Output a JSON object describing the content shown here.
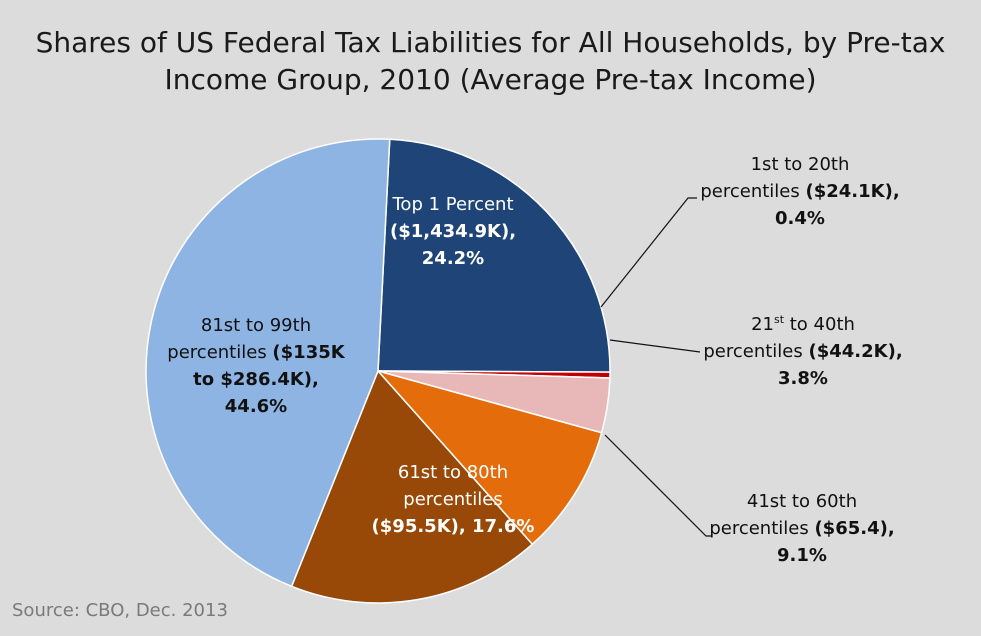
{
  "title_line1": "Shares of US Federal Tax Liabilities for All Households, by Pre-tax",
  "title_line2": "Income Group, 2010 (Average Pre-tax Income)",
  "source": "Source: CBO, Dec. 2013",
  "chart_data": {
    "type": "pie",
    "title": "Shares of US Federal Tax Liabilities for All Households, by Pre-tax Income Group, 2010 (Average Pre-tax Income)",
    "unit": "%",
    "slices": [
      {
        "key": "top-1-percent",
        "value": 24.2,
        "color": "#1f4578",
        "label_lines": [
          {
            "text": "Top 1 Percent",
            "bold": ""
          },
          {
            "text": "",
            "bold": "($1,434.9K),"
          },
          {
            "text": "",
            "bold": "24.2%"
          }
        ]
      },
      {
        "key": "1st-to-20th",
        "value": 0.4,
        "color": "#c00000",
        "label_lines": [
          {
            "text": "1st to 20th",
            "bold": ""
          },
          {
            "text": "percentiles ",
            "bold": "($24.1K)",
            "tail": ","
          },
          {
            "text": "",
            "bold": "0.4%"
          }
        ]
      },
      {
        "key": "21st-to-40th",
        "value": 3.8,
        "color": "#e8b8b8",
        "label_lines": [
          {
            "text": "21",
            "sup": "st",
            "tail": " to 40th"
          },
          {
            "text": "percentiles ",
            "bold": "($44.2K)",
            "tail": ","
          },
          {
            "text": "",
            "bold": "3.8%"
          }
        ]
      },
      {
        "key": "41st-to-60th",
        "value": 9.1,
        "color": "#e46c0a",
        "label_lines": [
          {
            "text": "41st to 60th",
            "bold": ""
          },
          {
            "text": "percentiles ",
            "bold": "($65.4)",
            "tail": ","
          },
          {
            "text": "",
            "bold": "9.1%"
          }
        ]
      },
      {
        "key": "61st-to-80th",
        "value": 17.6,
        "color": "#984807",
        "label_lines": [
          {
            "text": "61st to 80th",
            "bold": ""
          },
          {
            "text": "percentiles",
            "bold": ""
          },
          {
            "text": "",
            "bold": "($95.5K), 17.6%"
          }
        ]
      },
      {
        "key": "81st-to-99th",
        "value": 44.6,
        "color": "#8eb4e3",
        "label_lines": [
          {
            "text": "81st to 99th",
            "bold": ""
          },
          {
            "text": "percentiles ",
            "bold": "($135K"
          },
          {
            "text": "",
            "bold": "to $286.4K),"
          },
          {
            "text": "",
            "bold": "44.6%"
          }
        ]
      }
    ]
  }
}
